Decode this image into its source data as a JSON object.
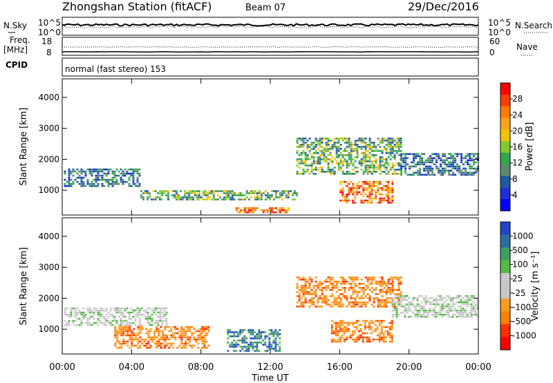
{
  "header": {
    "station": "Zhongshan Station (fitACF)",
    "beam": "Beam 07",
    "date": "29/Dec/2016"
  },
  "status": {
    "nsky_label": "N.Sky",
    "nsky_ticks": [
      "10^5",
      "10^0"
    ],
    "nsearch_label": "N.Search",
    "nsearch_ticks": [
      "10^5",
      "10^0"
    ],
    "freq_label": "Freq.",
    "freq_unit": "[MHz]",
    "freq_ticks": [
      "18",
      "8"
    ],
    "nave_label": "Nave",
    "nave_ticks": [
      "60",
      "0"
    ],
    "cpid_label": "CPID",
    "cpid_value": "normal (fast stereo) 153"
  },
  "chart_data": [
    {
      "type": "heatmap",
      "panel": "power",
      "ylabel": "Slant Range [km]",
      "yticks": [
        "4000",
        "3000",
        "2000",
        "1000"
      ],
      "ylim": [
        200,
        4600
      ],
      "colorbar_label": "Power [dB]",
      "colorbar_ticks": [
        "28",
        "24",
        "20",
        "16",
        "12",
        "8",
        "4"
      ],
      "colorbar_colors": [
        "#ff0000",
        "#ff3b00",
        "#ff7a00",
        "#ffa31a",
        "#f4c000",
        "#7fcc2e",
        "#2ea84a",
        "#5c8a6a",
        "#1f5aa0",
        "#1f2ed6",
        "#0000ff"
      ],
      "regions": [
        {
          "t0": 0.1,
          "t1": 4.5,
          "r0": 1100,
          "r1": 1700,
          "level": "low"
        },
        {
          "t0": 4.5,
          "t1": 13.5,
          "r0": 700,
          "r1": 1000,
          "level": "medium"
        },
        {
          "t0": 10.0,
          "t1": 13.0,
          "r0": 250,
          "r1": 450,
          "level": "high"
        },
        {
          "t0": 13.5,
          "t1": 19.5,
          "r0": 1500,
          "r1": 2700,
          "level": "medium"
        },
        {
          "t0": 16.0,
          "t1": 19.0,
          "r0": 600,
          "r1": 1300,
          "level": "high"
        },
        {
          "t0": 19.5,
          "t1": 24.0,
          "r0": 1500,
          "r1": 2200,
          "level": "low"
        }
      ]
    },
    {
      "type": "heatmap",
      "panel": "velocity",
      "ylabel": "Slant Range [km]",
      "yticks": [
        "4000",
        "3000",
        "2000",
        "1000"
      ],
      "ylim": [
        200,
        4600
      ],
      "colorbar_label": "Velocity [m s⁻¹]",
      "colorbar_ticks": [
        "1000",
        "500",
        "100",
        "25",
        "-25",
        "-100",
        "-500",
        "-1000"
      ],
      "colorbar_colors": [
        "#2244cc",
        "#2e6e9e",
        "#3aa060",
        "#55bb44",
        "#c8c8c8",
        "#c8c8c8",
        "#ff9a20",
        "#ff8000",
        "#ff3000",
        "#ff0000"
      ],
      "regions": [
        {
          "t0": 0.1,
          "t1": 6.0,
          "r0": 1100,
          "r1": 1700,
          "level": "ground"
        },
        {
          "t0": 3.0,
          "t1": 8.5,
          "r0": 400,
          "r1": 1100,
          "level": "away"
        },
        {
          "t0": 9.5,
          "t1": 12.5,
          "r0": 300,
          "r1": 1000,
          "level": "toward"
        },
        {
          "t0": 13.5,
          "t1": 19.5,
          "r0": 1700,
          "r1": 2700,
          "level": "away"
        },
        {
          "t0": 15.5,
          "t1": 19.0,
          "r0": 600,
          "r1": 1300,
          "level": "away"
        },
        {
          "t0": 19.0,
          "t1": 24.0,
          "r0": 1400,
          "r1": 2100,
          "level": "ground"
        }
      ]
    }
  ],
  "xaxis": {
    "ticks": [
      "00:00",
      "04:00",
      "08:00",
      "12:00",
      "16:00",
      "20:00",
      "00:00"
    ],
    "label": "Time UT",
    "range_hours": [
      0,
      24
    ]
  }
}
